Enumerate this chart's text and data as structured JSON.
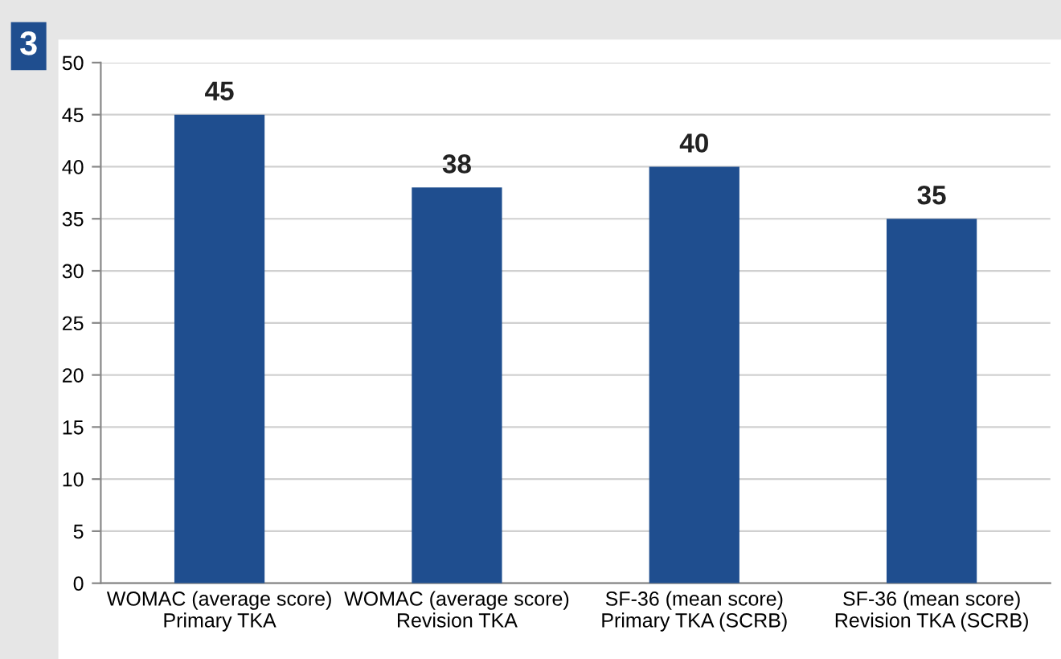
{
  "chart_data": {
    "type": "bar",
    "annotations": [
      "3"
    ],
    "categories": [
      "WOMAC (average score)\nPrimary TKA",
      "WOMAC (average score)\nRevision TKA",
      "SF-36 (mean score)\nPrimary TKA (SCRB)",
      "SF-36 (mean score)\nRevision TKA (SCRB)"
    ],
    "values": [
      45,
      38,
      40,
      35
    ],
    "color": "#1f4e8f",
    "ylim": [
      0,
      50
    ],
    "yticks": [
      0,
      5,
      10,
      15,
      20,
      25,
      30,
      35,
      40,
      45,
      50
    ],
    "grid": "y",
    "data_labels": true
  }
}
